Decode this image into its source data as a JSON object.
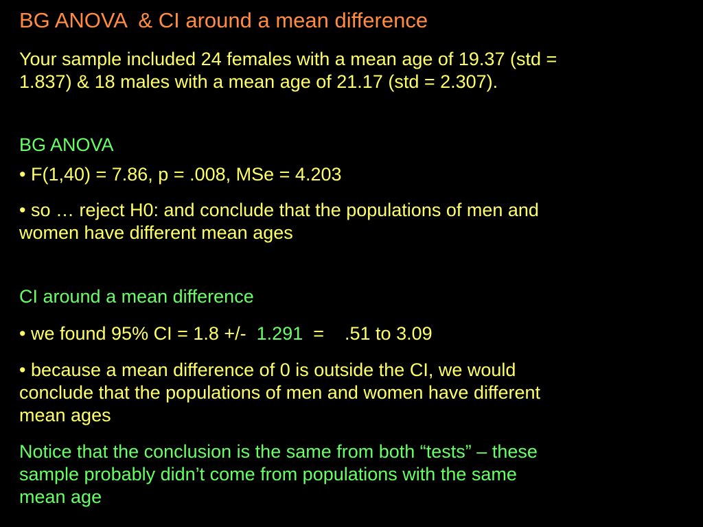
{
  "title": "BG ANOVA  & CI around a mean difference",
  "intro": {
    "lines": [
      "Your sample included 24 females with a mean age of 19.37 (std =",
      "1.837) & 18 males with a mean age of 21.17 (std = 2.307)."
    ]
  },
  "anova": {
    "heading": "BG ANOVA",
    "bullets": [
      {
        "lines": [
          "• F(1,40) = 7.86, p = .008, MSe = 4.203"
        ]
      },
      {
        "lines": [
          "• so … reject H0: and conclude that the populations of men and",
          "women have different mean ages"
        ]
      }
    ]
  },
  "ci": {
    "heading": "CI around a mean difference",
    "found": {
      "parts": [
        "• we found 95% CI = 1.8 +/-  ",
        "1.291",
        "  =    .51 to 3.09"
      ]
    },
    "conclusion": {
      "lines": [
        "• because a mean difference of 0 is outside the CI, we would",
        "conclude that the populations of men and women have different",
        "mean ages"
      ]
    }
  },
  "notice": {
    "lines": [
      "Notice that the conclusion is the same from both “tests” – these",
      "sample probably didn’t come from populations with the same",
      "mean age"
    ]
  }
}
